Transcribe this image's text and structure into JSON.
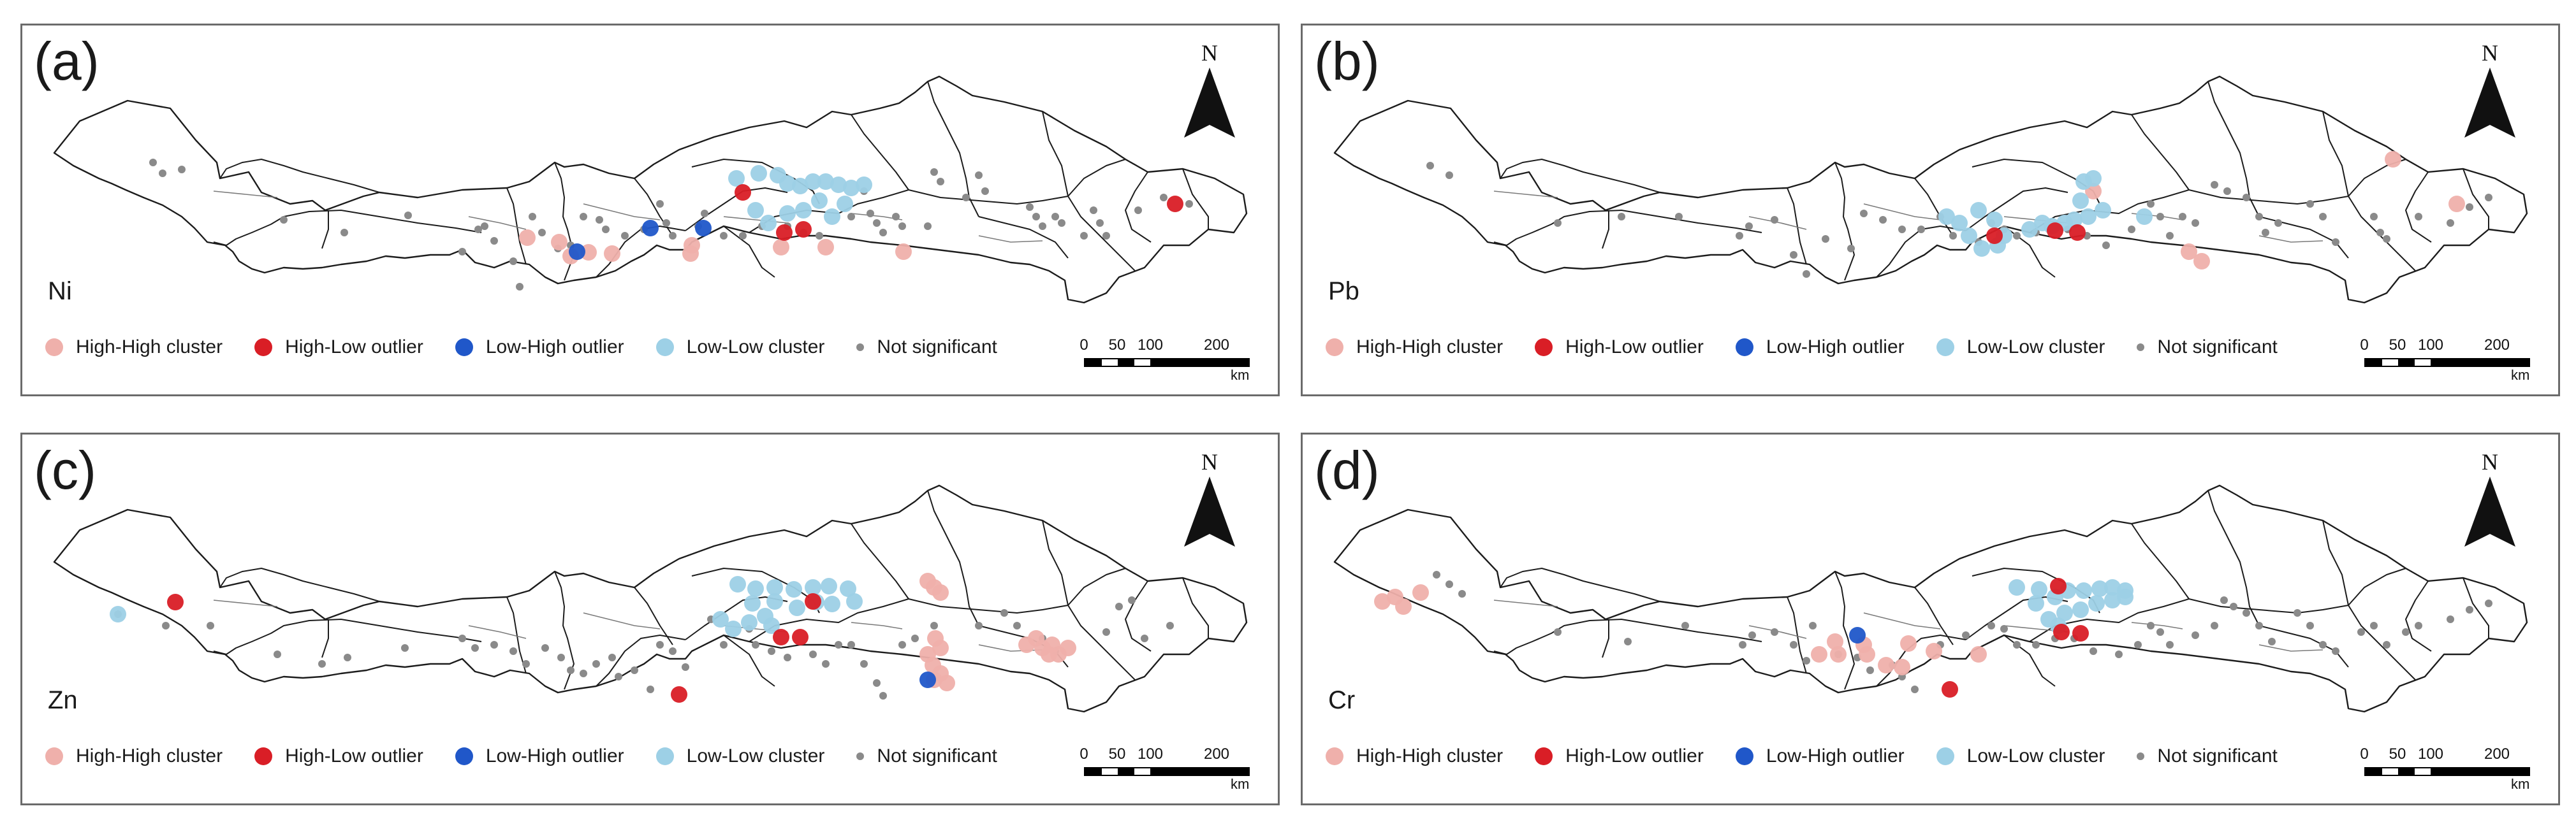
{
  "legend": [
    {
      "label": "High-High cluster",
      "color": "#efb0ab",
      "icon": "high-high-cluster-dot"
    },
    {
      "label": "High-Low outlier",
      "color": "#d91e26",
      "icon": "high-low-outlier-dot"
    },
    {
      "label": "Low-High outlier",
      "color": "#2057c9",
      "icon": "low-high-outlier-dot"
    },
    {
      "label": "Low-Low cluster",
      "color": "#9dd0e6",
      "icon": "low-low-cluster-dot"
    },
    {
      "label": "Not significant",
      "color": "#8a8a8a",
      "icon": "not-significant-dot"
    }
  ],
  "north_label": "N",
  "scale": {
    "ticks": [
      "0",
      "50",
      "100",
      "200"
    ],
    "unit": "km"
  },
  "panels": [
    {
      "label": "(a)",
      "metal": "Ni"
    },
    {
      "label": "(b)",
      "metal": "Pb"
    },
    {
      "label": "(c)",
      "metal": "Zn"
    },
    {
      "label": "(d)",
      "metal": "Cr"
    }
  ]
}
